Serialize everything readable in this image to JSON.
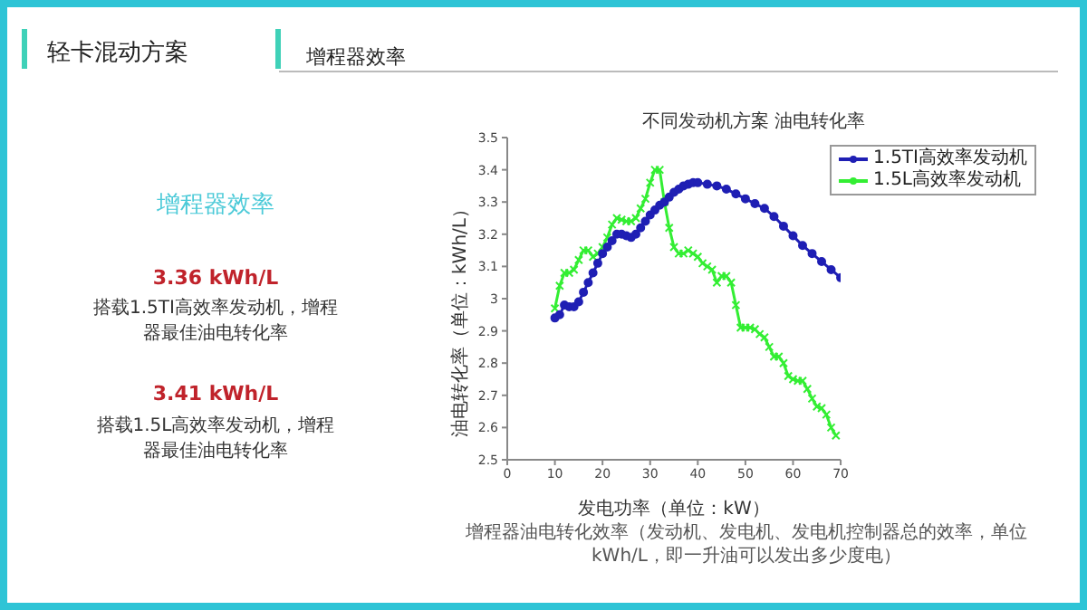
{
  "chart_data": {
    "type": "line",
    "title": "不同发动机方案 油电转化率",
    "xlabel": "发电功率（单位：kW）",
    "ylabel": "油电转化率（单位：kWh/L）",
    "annotations": [
      "轻卡混动方案",
      "增程器效率",
      "增程器效率",
      "3.36 kWh/L",
      "搭载1.5TI高效率发动机，增程器最佳油电转化率",
      "3.41 kWh/L",
      "搭载1.5L高效率发动机，增程器最佳油电转化率",
      "增程器油电转化效率（发动机、发电机、发电机控制器总的效率，单位kWh/L，即一升油可以发出多少度电）"
    ],
    "xlim": [
      0,
      70
    ],
    "xticks": [
      0,
      10,
      20,
      30,
      40,
      50,
      60,
      70
    ],
    "ylim": [
      2.5,
      3.5
    ],
    "yticks": [
      2.5,
      2.6,
      2.7,
      2.8,
      2.9,
      3,
      3.1,
      3.2,
      3.3,
      3.4,
      3.5
    ],
    "grid": false,
    "legend": "top right",
    "line_style": "solid",
    "series": [
      {
        "name": "1.5TI高效率发动机",
        "color": "#1f1fb4",
        "marker": "circle",
        "x": [
          10,
          11,
          12,
          13,
          14,
          15,
          16,
          17,
          18,
          19,
          20,
          21,
          22,
          23,
          24,
          25,
          26,
          27,
          28,
          29,
          30,
          31,
          32,
          33,
          34,
          35,
          36,
          37,
          38,
          39,
          40,
          42,
          44,
          46,
          48,
          50,
          52,
          54,
          56,
          58,
          60,
          62,
          64,
          66,
          68,
          70
        ],
        "values": [
          2.94,
          2.95,
          2.98,
          2.975,
          2.975,
          2.99,
          3.02,
          3.05,
          3.08,
          3.11,
          3.14,
          3.16,
          3.18,
          3.2,
          3.2,
          3.195,
          3.19,
          3.2,
          3.22,
          3.24,
          3.26,
          3.275,
          3.29,
          3.3,
          3.315,
          3.33,
          3.34,
          3.35,
          3.355,
          3.36,
          3.36,
          3.355,
          3.35,
          3.34,
          3.325,
          3.31,
          3.295,
          3.28,
          3.255,
          3.225,
          3.195,
          3.165,
          3.14,
          3.115,
          3.09,
          3.065
        ]
      },
      {
        "name": "1.5L高效率发动机",
        "color": "#33ee33",
        "marker": "cross",
        "x": [
          10,
          11,
          12,
          13,
          14,
          15,
          16,
          17,
          18,
          19,
          20,
          21,
          22,
          23,
          24,
          25,
          26,
          27,
          28,
          29,
          30,
          31,
          32,
          33,
          34,
          35,
          36,
          37,
          38,
          39,
          40,
          41,
          42,
          43,
          44,
          45,
          46,
          47,
          48,
          49,
          50,
          51,
          52,
          53,
          54,
          55,
          56,
          57,
          58,
          59,
          60,
          61,
          62,
          63,
          64,
          65,
          66,
          67,
          68,
          69
        ],
        "values": [
          2.97,
          3.04,
          3.08,
          3.08,
          3.09,
          3.12,
          3.15,
          3.15,
          3.13,
          3.14,
          3.16,
          3.19,
          3.23,
          3.25,
          3.245,
          3.24,
          3.24,
          3.25,
          3.28,
          3.31,
          3.36,
          3.4,
          3.4,
          3.3,
          3.22,
          3.16,
          3.14,
          3.14,
          3.15,
          3.14,
          3.13,
          3.11,
          3.1,
          3.09,
          3.05,
          3.07,
          3.07,
          3.05,
          2.98,
          2.91,
          2.91,
          2.91,
          2.905,
          2.89,
          2.88,
          2.85,
          2.82,
          2.82,
          2.8,
          2.76,
          2.75,
          2.745,
          2.745,
          2.72,
          2.69,
          2.665,
          2.66,
          2.64,
          2.6,
          2.575
        ]
      }
    ]
  }
}
